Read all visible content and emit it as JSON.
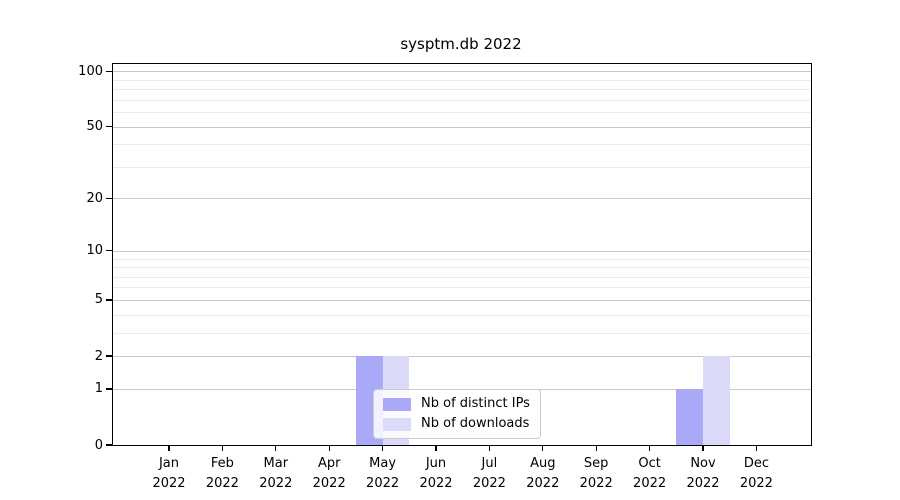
{
  "chart_data": {
    "type": "bar",
    "title": "sysptm.db 2022",
    "categories": [
      {
        "month": "Jan",
        "year": "2022"
      },
      {
        "month": "Feb",
        "year": "2022"
      },
      {
        "month": "Mar",
        "year": "2022"
      },
      {
        "month": "Apr",
        "year": "2022"
      },
      {
        "month": "May",
        "year": "2022"
      },
      {
        "month": "Jun",
        "year": "2022"
      },
      {
        "month": "Jul",
        "year": "2022"
      },
      {
        "month": "Aug",
        "year": "2022"
      },
      {
        "month": "Sep",
        "year": "2022"
      },
      {
        "month": "Oct",
        "year": "2022"
      },
      {
        "month": "Nov",
        "year": "2022"
      },
      {
        "month": "Dec",
        "year": "2022"
      }
    ],
    "series": [
      {
        "name": "Nb of distinct IPs",
        "color": "#a9a9f7",
        "values": [
          0,
          0,
          0,
          0,
          2,
          0,
          0,
          0,
          0,
          0,
          1,
          0
        ]
      },
      {
        "name": "Nb of downloads",
        "color": "#dbdbf9",
        "values": [
          0,
          0,
          0,
          0,
          2,
          0,
          0,
          0,
          0,
          0,
          2,
          0
        ]
      }
    ],
    "y_axis": {
      "scale": "log1p",
      "ylim": [
        0,
        100
      ],
      "major_ticks": [
        0,
        1,
        2,
        5,
        10,
        20,
        50,
        100
      ],
      "minor_ticks": [
        3,
        4,
        6,
        7,
        8,
        9,
        30,
        40,
        60,
        70,
        80,
        90
      ]
    },
    "legend": {
      "position": "lower center",
      "entries": [
        "Nb of distinct IPs",
        "Nb of downloads"
      ]
    },
    "grid": true,
    "colors": {
      "grid_major": "#c8c8c8",
      "grid_minor": "#ebebeb",
      "axis": "#000000",
      "background": "#ffffff"
    }
  }
}
